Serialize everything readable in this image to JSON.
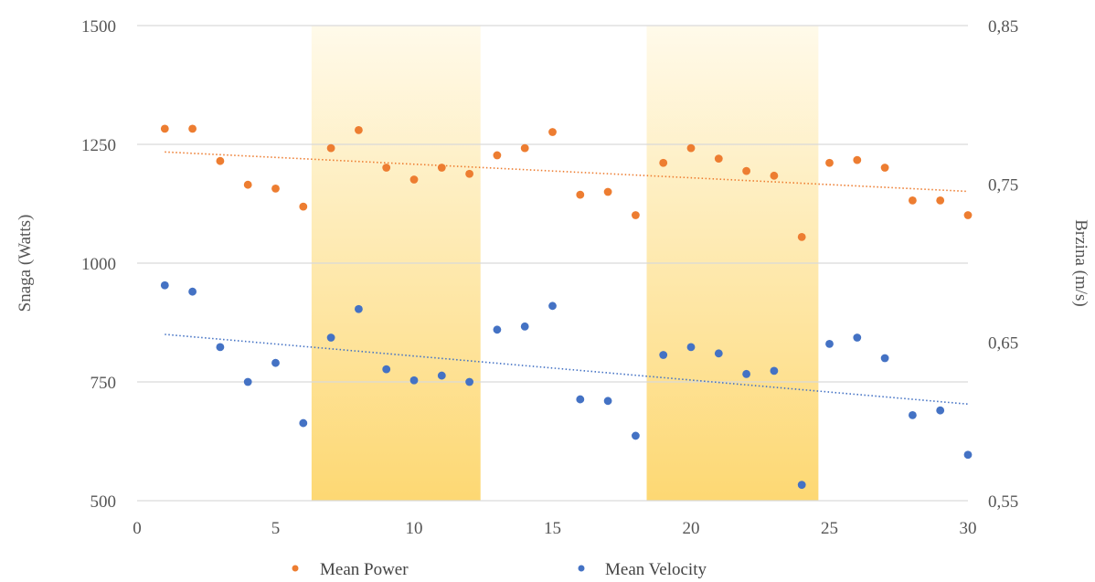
{
  "chart_data": {
    "type": "scatter",
    "title": "",
    "xlabel": "",
    "ylabel": "Snaga (Watts)",
    "y2label": "Brzina (m/s)",
    "xlim": [
      0,
      30
    ],
    "ylim": [
      500,
      1500
    ],
    "y2lim": [
      0.55,
      0.85
    ],
    "x_ticks": [
      "0",
      "5",
      "10",
      "15",
      "20",
      "25",
      "30"
    ],
    "y_ticks": [
      "500",
      "750",
      "1000",
      "1250",
      "1500"
    ],
    "y2_ticks": [
      "0,55",
      "0,65",
      "0,75",
      "0,85"
    ],
    "grid": "horizontal",
    "legend_position": "bottom",
    "shaded_x_ranges": [
      [
        6.3,
        12.4
      ],
      [
        18.4,
        24.6
      ]
    ],
    "shade_colors": [
      "#fffaea",
      "#fdd873"
    ],
    "series": [
      {
        "name": "Mean Power",
        "axis": "left",
        "color": "#ed7d31",
        "x": [
          1,
          2,
          3,
          4,
          5,
          6,
          7,
          8,
          9,
          10,
          11,
          12,
          13,
          14,
          15,
          16,
          17,
          18,
          19,
          20,
          21,
          22,
          23,
          24,
          25,
          26,
          27,
          28,
          29,
          30
        ],
        "values": [
          1283,
          1283,
          1215,
          1165,
          1157,
          1119,
          1242,
          1280,
          1201,
          1176,
          1201,
          1188,
          1227,
          1242,
          1276,
          1144,
          1150,
          1101,
          1211,
          1242,
          1220,
          1194,
          1184,
          1055,
          1211,
          1217,
          1201,
          1132,
          1132,
          1101
        ],
        "trendline": [
          1234,
          1151
        ]
      },
      {
        "name": "Mean Velocity",
        "axis": "right",
        "color": "#4472c4",
        "x": [
          1,
          2,
          3,
          4,
          5,
          6,
          7,
          8,
          9,
          10,
          11,
          12,
          13,
          14,
          15,
          16,
          17,
          18,
          19,
          20,
          21,
          22,
          23,
          24,
          25,
          26,
          27,
          28,
          29,
          30
        ],
        "values": [
          0.686,
          0.682,
          0.647,
          0.625,
          0.637,
          0.599,
          0.653,
          0.671,
          0.633,
          0.626,
          0.629,
          0.625,
          0.658,
          0.66,
          0.673,
          0.614,
          0.613,
          0.591,
          0.642,
          0.647,
          0.643,
          0.63,
          0.632,
          0.56,
          0.649,
          0.653,
          0.64,
          0.604,
          0.607,
          0.579
        ],
        "trendline": [
          0.655,
          0.611
        ]
      }
    ]
  }
}
